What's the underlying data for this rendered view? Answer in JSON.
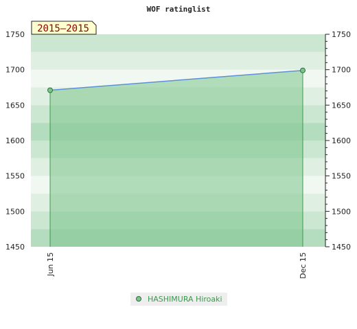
{
  "chart_data": {
    "type": "area",
    "title": "WOF ratinglist",
    "period_label": "2015–2015",
    "ylim": [
      1450,
      1750
    ],
    "y_ticks": [
      1450,
      1500,
      1550,
      1600,
      1650,
      1700,
      1750
    ],
    "categories": [
      "Jun 15",
      "Dec 15"
    ],
    "series": [
      {
        "name": "HASHIMURA Hiroaki",
        "values": [
          1671,
          1699
        ]
      }
    ],
    "grid": true,
    "legend_position": "bottom-center",
    "colors": {
      "line": "#5b8fd6",
      "fill": "#7cc48c",
      "marker": "#2e6b3a",
      "band_a": "#e8f4ea",
      "band_b": "#bfe2c6",
      "period_bg": "#ffffd0",
      "legend_text": "#3a9a4a"
    }
  }
}
